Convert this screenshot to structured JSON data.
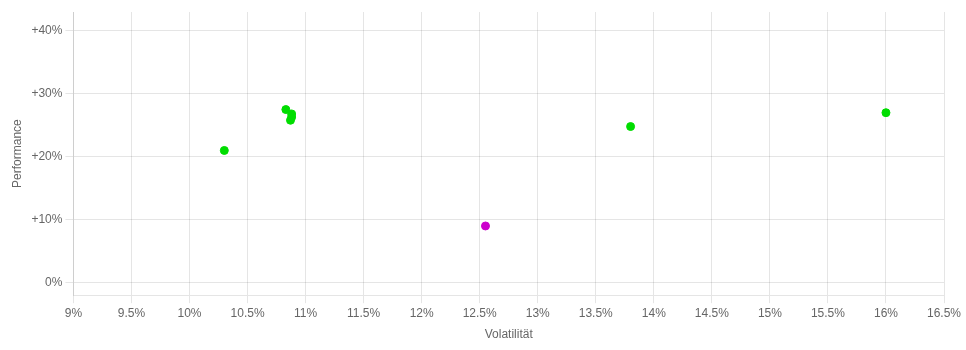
{
  "chart_data": {
    "type": "scatter",
    "xlabel": "Volatilität",
    "ylabel": "Performance",
    "series": [
      {
        "color": "#00dd00",
        "x": [
          0.1083,
          0.1088,
          0.1088,
          0.1087,
          0.103,
          0.138,
          0.16
        ],
        "values": [
          0.275,
          0.268,
          0.263,
          0.258,
          0.21,
          0.248,
          0.27
        ]
      },
      {
        "color": "#cc00cc",
        "x": [
          0.1255
        ],
        "values": [
          0.09
        ]
      }
    ],
    "xlim": [
      0.09,
      0.165
    ],
    "xticks": [
      {
        "value": 0.09,
        "label": "9%"
      },
      {
        "value": 0.095,
        "label": "9.5%"
      },
      {
        "value": 0.1,
        "label": "10%"
      },
      {
        "value": 0.105,
        "label": "10.5%"
      },
      {
        "value": 0.11,
        "label": "11%"
      },
      {
        "value": 0.115,
        "label": "11.5%"
      },
      {
        "value": 0.12,
        "label": "12%"
      },
      {
        "value": 0.125,
        "label": "12.5%"
      },
      {
        "value": 0.13,
        "label": "13%"
      },
      {
        "value": 0.135,
        "label": "13.5%"
      },
      {
        "value": 0.14,
        "label": "14%"
      },
      {
        "value": 0.145,
        "label": "14.5%"
      },
      {
        "value": 0.15,
        "label": "15%"
      },
      {
        "value": 0.155,
        "label": "15.5%"
      },
      {
        "value": 0.16,
        "label": "16%"
      },
      {
        "value": 0.165,
        "label": "16.5%"
      }
    ],
    "ylim": [
      -0.02,
      0.43
    ],
    "yticks": [
      {
        "value": 0.0,
        "label": "0%"
      },
      {
        "value": 0.1,
        "label": "+10%"
      },
      {
        "value": 0.2,
        "label": "+20%"
      },
      {
        "value": 0.3,
        "label": "+30%"
      },
      {
        "value": 0.4,
        "label": "+40%"
      }
    ],
    "grid": true
  }
}
